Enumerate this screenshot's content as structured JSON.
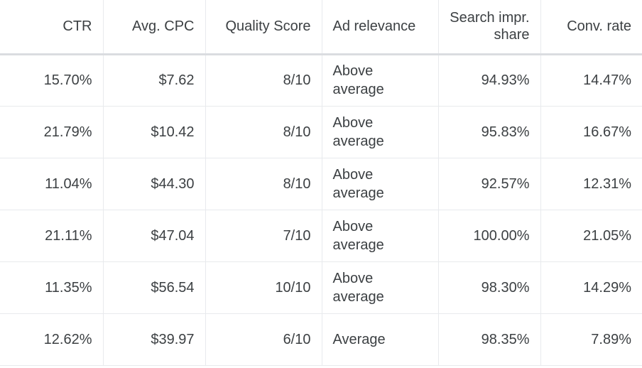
{
  "columns": [
    {
      "key": "ctr",
      "label": "CTR"
    },
    {
      "key": "avg_cpc",
      "label": "Avg. CPC"
    },
    {
      "key": "quality_score",
      "label": "Quality Score"
    },
    {
      "key": "ad_relevance",
      "label": "Ad relevance"
    },
    {
      "key": "search_impr_share",
      "label": "Search impr. share"
    },
    {
      "key": "conv_rate",
      "label": "Conv. rate"
    }
  ],
  "rows": [
    {
      "ctr": "15.70%",
      "avg_cpc": "$7.62",
      "quality_score": "8/10",
      "ad_relevance": "Above average",
      "search_impr_share": "94.93%",
      "conv_rate": "14.47%"
    },
    {
      "ctr": "21.79%",
      "avg_cpc": "$10.42",
      "quality_score": "8/10",
      "ad_relevance": "Above average",
      "search_impr_share": "95.83%",
      "conv_rate": "16.67%"
    },
    {
      "ctr": "11.04%",
      "avg_cpc": "$44.30",
      "quality_score": "8/10",
      "ad_relevance": "Above average",
      "search_impr_share": "92.57%",
      "conv_rate": "12.31%"
    },
    {
      "ctr": "21.11%",
      "avg_cpc": "$47.04",
      "quality_score": "7/10",
      "ad_relevance": "Above average",
      "search_impr_share": "100.00%",
      "conv_rate": "21.05%"
    },
    {
      "ctr": "11.35%",
      "avg_cpc": "$56.54",
      "quality_score": "10/10",
      "ad_relevance": "Above average",
      "search_impr_share": "98.30%",
      "conv_rate": "14.29%"
    },
    {
      "ctr": "12.62%",
      "avg_cpc": "$39.97",
      "quality_score": "6/10",
      "ad_relevance": "Average",
      "search_impr_share": "98.35%",
      "conv_rate": "7.89%"
    }
  ]
}
